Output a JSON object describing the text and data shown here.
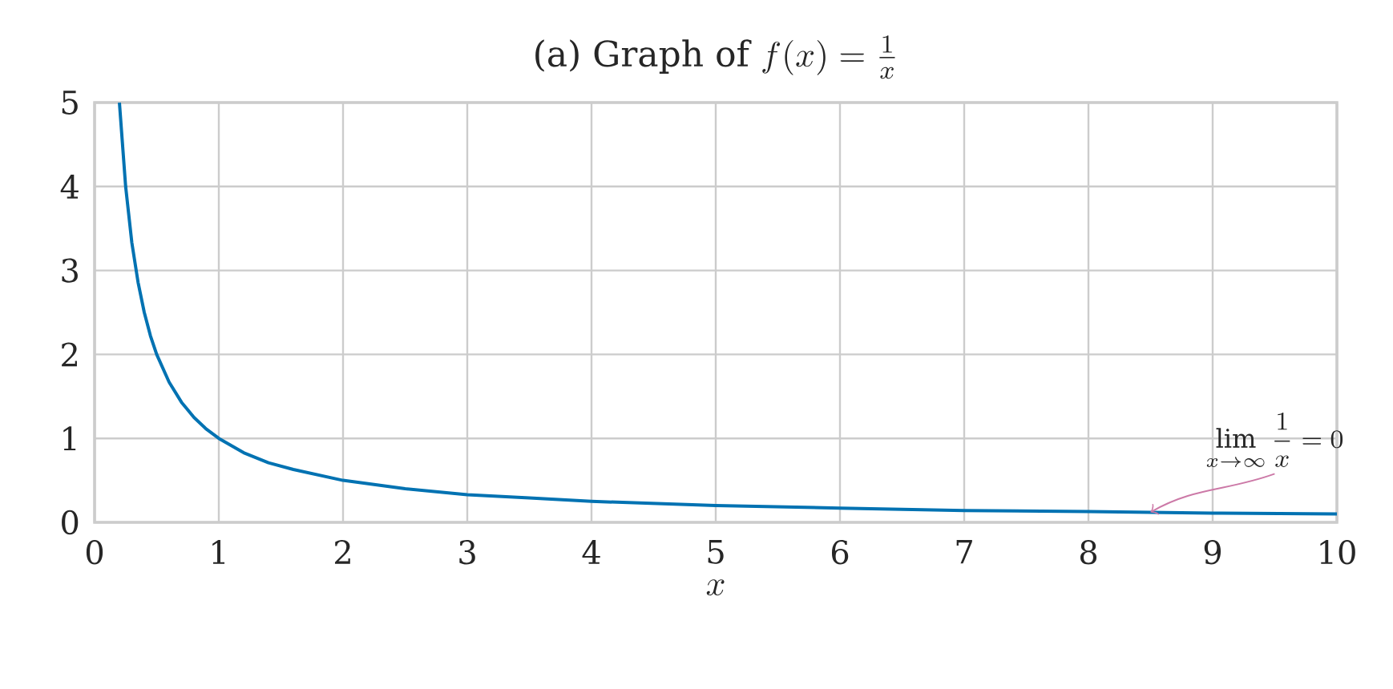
{
  "chart_data": {
    "type": "line",
    "title": "\\mbox{(a) Graph of }f(x)=\\frac{1}{x}",
    "xlabel": "x",
    "x": [
      0.2,
      0.25,
      0.3,
      0.35,
      0.4,
      0.45,
      0.5,
      0.6,
      0.7,
      0.8,
      0.9,
      1,
      1.2,
      1.4,
      1.6,
      2,
      2.5,
      3,
      3.5,
      4,
      5,
      6,
      7,
      8,
      9,
      10
    ],
    "values": [
      5,
      4,
      3.33,
      2.86,
      2.5,
      2.22,
      2,
      1.67,
      1.43,
      1.25,
      1.11,
      1,
      0.83,
      0.71,
      0.63,
      0.5,
      0.4,
      0.33,
      0.29,
      0.25,
      0.2,
      0.17,
      0.14,
      0.13,
      0.11,
      0.1
    ],
    "color": "#0072b2",
    "marker": "none",
    "grid": true,
    "xlim": [
      0,
      10
    ],
    "ylim": [
      0,
      5
    ],
    "xticks": [
      0,
      1,
      2,
      3,
      4,
      5,
      6,
      7,
      8,
      9,
      10
    ],
    "yticks": [
      0,
      1,
      2,
      3,
      4,
      5
    ],
    "annotations": [
      {
        "text": "\\lim_{x\\to\\infty}\\frac{1}{x}=0",
        "x": 8.5,
        "y": 0.12
      }
    ]
  }
}
